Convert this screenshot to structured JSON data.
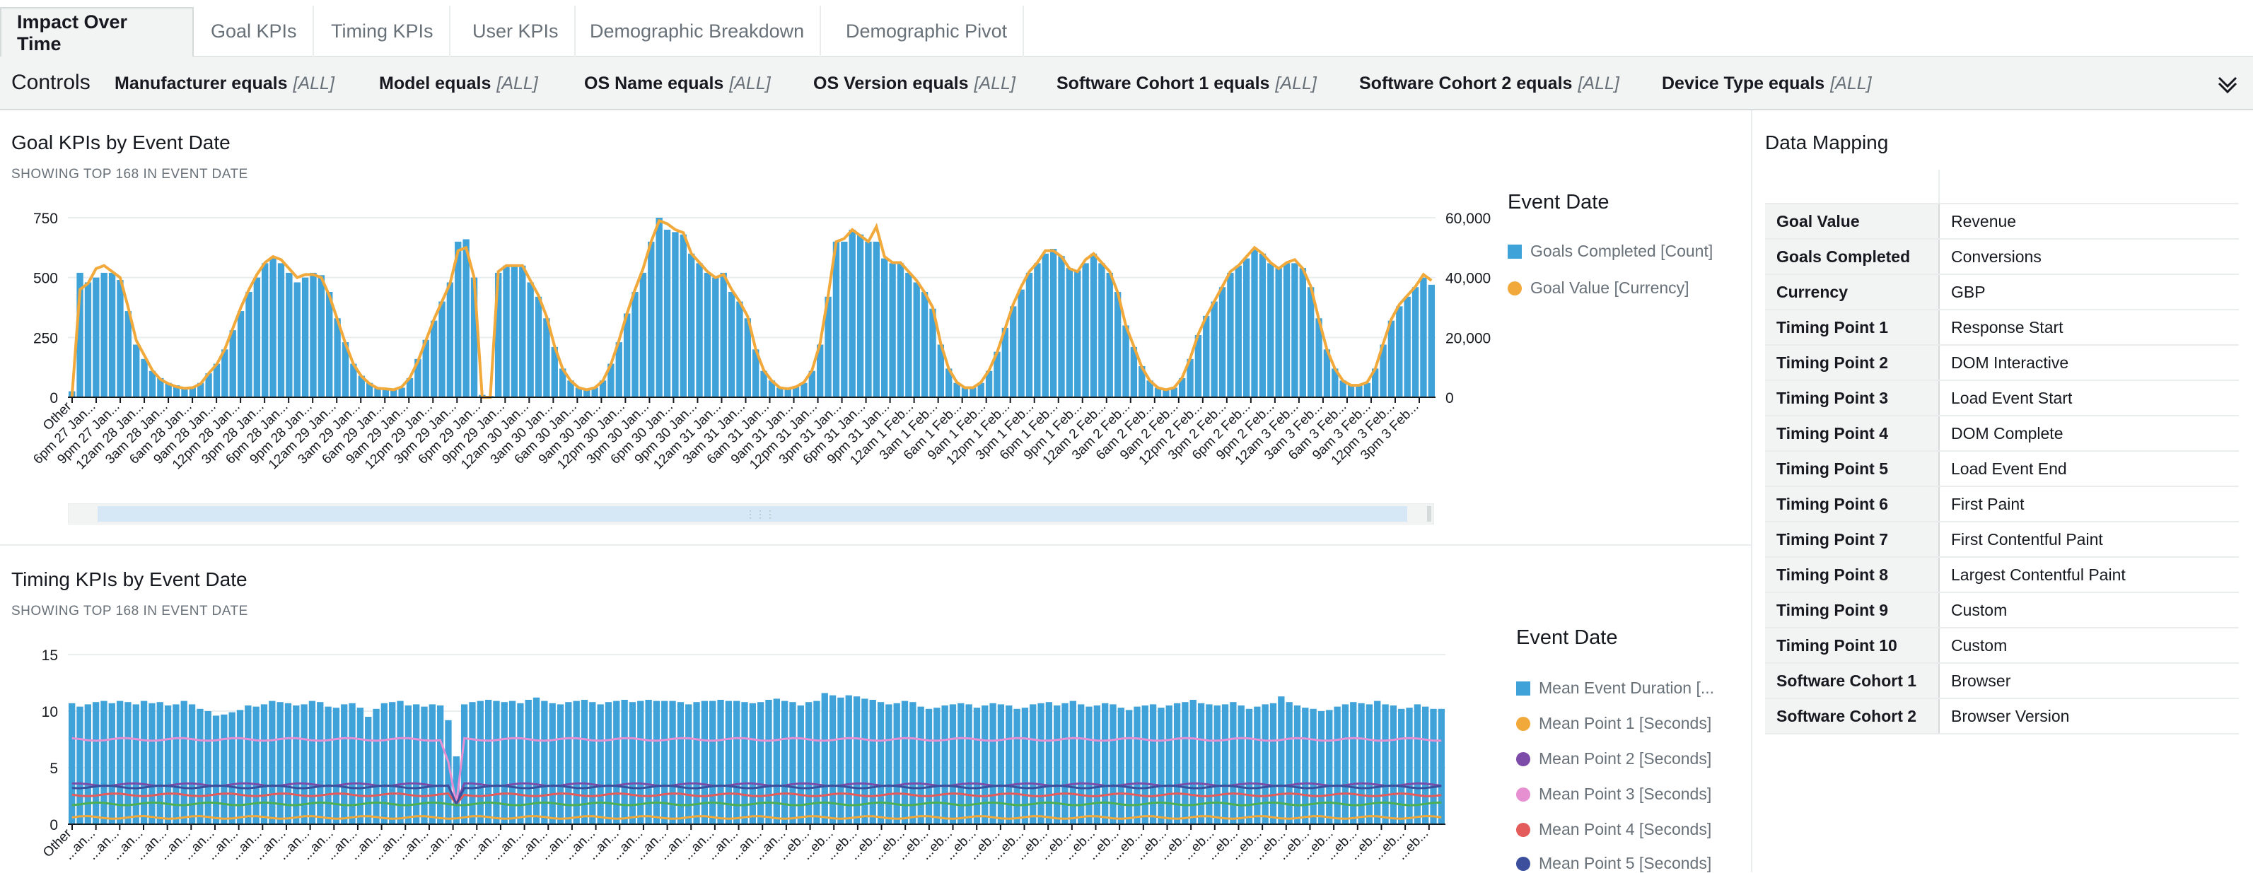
{
  "tabs": [
    {
      "label": "Impact Over Time"
    },
    {
      "label": "Goal KPIs"
    },
    {
      "label": "Timing KPIs"
    },
    {
      "label": "User KPIs"
    },
    {
      "label": "Demographic Breakdown"
    },
    {
      "label": "Demographic Pivot"
    }
  ],
  "controls": {
    "title": "Controls",
    "filters": [
      {
        "name": "Manufacturer equals",
        "value": "[ALL]"
      },
      {
        "name": "Model equals",
        "value": "[ALL]"
      },
      {
        "name": "OS Name equals",
        "value": "[ALL]"
      },
      {
        "name": "OS Version equals",
        "value": "[ALL]"
      },
      {
        "name": "Software Cohort 1 equals",
        "value": "[ALL]"
      },
      {
        "name": "Software Cohort 2 equals",
        "value": "[ALL]"
      },
      {
        "name": "Device Type equals",
        "value": "[ALL]"
      }
    ],
    "expand_icon": "chevron-down-icon"
  },
  "goal_panel": {
    "title": "Goal KPIs by Event Date",
    "subtitle": "SHOWING TOP 168 IN EVENT DATE",
    "legend_title": "Event Date",
    "legend": [
      {
        "label": "Goals Completed [Count]",
        "color": "#3fa3d9",
        "shape": "square"
      },
      {
        "label": "Goal Value [Currency]",
        "color": "#f2a93b",
        "shape": "dot"
      }
    ]
  },
  "timing_panel": {
    "title": "Timing KPIs by Event Date",
    "subtitle": "SHOWING TOP 168 IN EVENT DATE",
    "legend_title": "Event Date",
    "legend": [
      {
        "label": "Mean Event Duration [...",
        "color": "#3fa3d9",
        "shape": "square"
      },
      {
        "label": "Mean Point 1 [Seconds]",
        "color": "#f2a93b",
        "shape": "dot"
      },
      {
        "label": "Mean Point 2 [Seconds]",
        "color": "#7d4ca8",
        "shape": "dot"
      },
      {
        "label": "Mean Point 3 [Seconds]",
        "color": "#e68fd1",
        "shape": "dot"
      },
      {
        "label": "Mean Point 4 [Seconds]",
        "color": "#e35b5b",
        "shape": "dot"
      },
      {
        "label": "Mean Point 5 [Seconds]",
        "color": "#3b4f9c",
        "shape": "dot"
      }
    ]
  },
  "data_mapping": {
    "title": "Data Mapping",
    "rows": [
      {
        "key": "Goal Value",
        "value": "Revenue"
      },
      {
        "key": "Goals Completed",
        "value": "Conversions"
      },
      {
        "key": "Currency",
        "value": "GBP"
      },
      {
        "key": "Timing Point 1",
        "value": "Response Start"
      },
      {
        "key": "Timing Point 2",
        "value": "DOM Interactive"
      },
      {
        "key": "Timing Point 3",
        "value": "Load Event Start"
      },
      {
        "key": "Timing Point 4",
        "value": "DOM Complete"
      },
      {
        "key": "Timing Point 5",
        "value": "Load Event End"
      },
      {
        "key": "Timing Point 6",
        "value": "First Paint"
      },
      {
        "key": "Timing Point 7",
        "value": "First Contentful Paint"
      },
      {
        "key": "Timing Point 8",
        "value": "Largest Contentful Paint"
      },
      {
        "key": "Timing Point 9",
        "value": "Custom"
      },
      {
        "key": "Timing Point 10",
        "value": "Custom"
      },
      {
        "key": "Software Cohort 1",
        "value": "Browser"
      },
      {
        "key": "Software Cohort 2",
        "value": "Browser Version"
      }
    ]
  },
  "chart_data": [
    {
      "type": "bar",
      "title": "Goal KPIs by Event Date",
      "y_left_ticks": [
        "0",
        "250",
        "500",
        "750"
      ],
      "y_right_ticks": [
        "0",
        "20,000",
        "40,000",
        "60,000"
      ],
      "ylim": [
        0,
        750
      ],
      "y2lim": [
        0,
        60000
      ],
      "x_tick_labels": [
        "Other",
        "6pm 27 Jan...",
        "9pm 27 Jan...",
        "12am 28 Jan...",
        "3am 28 Jan...",
        "6am 28 Jan...",
        "9am 28 Jan...",
        "12pm 28 Jan...",
        "3pm 28 Jan...",
        "6pm 28 Jan...",
        "9pm 28 Jan...",
        "12am 29 Jan...",
        "3am 29 Jan...",
        "6am 29 Jan...",
        "9am 29 Jan...",
        "12pm 29 Jan...",
        "3pm 29 Jan...",
        "6pm 29 Jan...",
        "9pm 29 Jan...",
        "12am 30 Jan...",
        "3am 30 Jan...",
        "6am 30 Jan...",
        "9am 30 Jan...",
        "12pm 30 Jan...",
        "3pm 30 Jan...",
        "6pm 30 Jan...",
        "9pm 30 Jan...",
        "12am 31 Jan...",
        "3am 31 Jan...",
        "6am 31 Jan...",
        "9am 31 Jan...",
        "12pm 31 Jan...",
        "3pm 31 Jan...",
        "6pm 31 Jan...",
        "9pm 31 Jan...",
        "12am 1 Feb...",
        "3am 1 Feb...",
        "6am 1 Feb...",
        "9am 1 Feb...",
        "12pm 1 Feb...",
        "3pm 1 Feb...",
        "6pm 1 Feb...",
        "9pm 1 Feb...",
        "12am 2 Feb...",
        "3am 2 Feb...",
        "6am 2 Feb...",
        "9am 2 Feb...",
        "12pm 2 Feb...",
        "3pm 2 Feb...",
        "6pm 2 Feb...",
        "9pm 2 Feb...",
        "12am 3 Feb...",
        "3am 3 Feb...",
        "6am 3 Feb...",
        "9am 3 Feb...",
        "12pm 3 Feb...",
        "3pm 3 Feb..."
      ],
      "series": [
        {
          "name": "Goals Completed [Count]",
          "axis": "left",
          "color": "#3fa3d9",
          "values": [
            25,
            520,
            480,
            500,
            520,
            520,
            490,
            360,
            220,
            160,
            110,
            80,
            60,
            50,
            40,
            45,
            60,
            100,
            140,
            200,
            280,
            360,
            440,
            500,
            560,
            580,
            560,
            520,
            480,
            500,
            520,
            510,
            440,
            330,
            230,
            140,
            90,
            60,
            40,
            35,
            30,
            40,
            80,
            160,
            240,
            320,
            400,
            480,
            650,
            660,
            500,
            10,
            5,
            520,
            550,
            550,
            550,
            480,
            420,
            330,
            210,
            120,
            70,
            40,
            30,
            40,
            70,
            140,
            230,
            350,
            440,
            520,
            650,
            750,
            700,
            690,
            680,
            600,
            560,
            520,
            500,
            520,
            440,
            400,
            330,
            200,
            110,
            70,
            40,
            35,
            45,
            60,
            110,
            220,
            420,
            650,
            650,
            700,
            680,
            650,
            650,
            580,
            560,
            560,
            520,
            480,
            440,
            370,
            220,
            120,
            60,
            40,
            40,
            60,
            110,
            190,
            290,
            380,
            450,
            520,
            560,
            600,
            620,
            590,
            540,
            530,
            560,
            600,
            560,
            520,
            440,
            300,
            210,
            130,
            70,
            40,
            30,
            40,
            80,
            160,
            260,
            340,
            400,
            460,
            520,
            550,
            580,
            620,
            600,
            560,
            540,
            560,
            560,
            540,
            460,
            330,
            200,
            120,
            70,
            50,
            50,
            60,
            120,
            220,
            320,
            380,
            420,
            460,
            500,
            470
          ]
        },
        {
          "name": "Goal Value [Currency]",
          "axis": "right",
          "color": "#f2a93b",
          "values": [
            0,
            36000,
            38000,
            43000,
            44000,
            42000,
            40000,
            30000,
            19000,
            14000,
            9000,
            6000,
            4500,
            3500,
            3000,
            3200,
            4500,
            8000,
            11000,
            16000,
            23000,
            30000,
            36000,
            41000,
            45000,
            47000,
            46000,
            43000,
            40000,
            41000,
            41000,
            40000,
            34000,
            26000,
            18000,
            11000,
            7000,
            4500,
            3000,
            2800,
            2500,
            3500,
            6500,
            12000,
            19000,
            26000,
            32000,
            38000,
            49000,
            50000,
            40000,
            0,
            0,
            42000,
            44000,
            44000,
            44000,
            39000,
            34000,
            27000,
            17000,
            9500,
            5500,
            3200,
            2500,
            3200,
            5500,
            11000,
            19000,
            28000,
            36000,
            43000,
            52000,
            59000,
            58000,
            56000,
            55000,
            48000,
            45000,
            42000,
            40000,
            41000,
            36000,
            32000,
            27000,
            16000,
            9000,
            5500,
            3200,
            2800,
            3500,
            5000,
            9000,
            18000,
            34000,
            52000,
            53000,
            56000,
            54000,
            52000,
            57000,
            47000,
            45000,
            45000,
            42000,
            39000,
            35000,
            30000,
            18000,
            9500,
            5000,
            3200,
            3200,
            5000,
            9000,
            15000,
            23000,
            31000,
            37000,
            42000,
            45000,
            49000,
            49000,
            47000,
            43000,
            42000,
            46000,
            48000,
            45000,
            42000,
            35000,
            24000,
            17000,
            10000,
            5500,
            3200,
            2500,
            3200,
            6500,
            13000,
            21000,
            27000,
            32000,
            37000,
            42000,
            44000,
            47000,
            50000,
            48000,
            45000,
            43000,
            45000,
            46000,
            43000,
            37000,
            26000,
            16000,
            9500,
            5500,
            4000,
            4000,
            5000,
            9500,
            18000,
            26000,
            31000,
            34000,
            37000,
            41000,
            39000
          ]
        }
      ]
    },
    {
      "type": "bar",
      "title": "Timing KPIs by Event Date",
      "y_ticks": [
        "0",
        "5",
        "10",
        "15"
      ],
      "ylim": [
        0,
        15
      ],
      "series": [
        {
          "name": "Mean Event Duration [...",
          "color": "#3fa3d9",
          "values": [
            10.7,
            10.4,
            10.6,
            10.8,
            10.9,
            10.7,
            10.9,
            10.8,
            10.6,
            10.9,
            10.7,
            10.8,
            10.5,
            10.6,
            10.9,
            10.6,
            10.2,
            10.0,
            9.6,
            9.7,
            9.9,
            10.1,
            10.5,
            10.4,
            10.6,
            10.9,
            10.8,
            10.7,
            10.5,
            10.6,
            10.9,
            10.8,
            10.4,
            10.3,
            10.6,
            10.7,
            10.3,
            9.5,
            10.2,
            10.7,
            10.8,
            10.9,
            10.5,
            10.6,
            10.4,
            10.6,
            10.5,
            9.2,
            6.0,
            10.6,
            10.8,
            10.9,
            11.0,
            10.9,
            10.8,
            10.9,
            10.7,
            11.0,
            11.2,
            10.9,
            10.7,
            10.6,
            10.8,
            10.9,
            11.0,
            10.8,
            10.6,
            10.8,
            10.9,
            11.0,
            10.8,
            10.9,
            11.0,
            10.9,
            10.9,
            10.9,
            10.8,
            10.6,
            10.8,
            10.9,
            10.9,
            11.0,
            10.9,
            10.9,
            10.8,
            10.7,
            10.8,
            11.0,
            11.1,
            10.9,
            10.8,
            10.5,
            10.8,
            10.9,
            11.6,
            11.4,
            11.2,
            11.4,
            11.3,
            11.1,
            11.0,
            10.8,
            10.6,
            10.7,
            10.9,
            10.8,
            10.4,
            10.2,
            10.3,
            10.5,
            10.6,
            10.7,
            10.6,
            10.3,
            10.5,
            10.7,
            10.6,
            10.5,
            10.2,
            10.3,
            10.6,
            10.7,
            10.8,
            10.5,
            10.7,
            10.9,
            10.6,
            10.4,
            10.5,
            10.7,
            10.6,
            10.3,
            10.1,
            10.4,
            10.5,
            10.6,
            10.3,
            10.5,
            10.7,
            10.8,
            11.0,
            10.7,
            10.6,
            10.5,
            10.6,
            10.8,
            10.5,
            10.2,
            10.4,
            10.6,
            10.7,
            11.3,
            10.8,
            10.5,
            10.3,
            10.2,
            10.0,
            10.1,
            10.4,
            10.6,
            10.8,
            10.7,
            10.6,
            10.9,
            10.6,
            10.5,
            10.2,
            10.3,
            10.6,
            10.4,
            10.2,
            10.2
          ]
        },
        {
          "name": "Mean Point 1 [Seconds]",
          "color": "#f2a93b",
          "values_note": "approximately flat near 0.6"
        },
        {
          "name": "Mean Point 2 [Seconds]",
          "color": "#7d4ca8",
          "values_note": "approximately flat near 3.5"
        },
        {
          "name": "Mean Point 3 [Seconds]",
          "color": "#e68fd1",
          "values_note": "approximately flat near 7.5, dip near 2 at 9pm 29 Jan"
        },
        {
          "name": "Mean Point 4 [Seconds]",
          "color": "#e35b5b",
          "values_note": "approximately flat near 2.6"
        },
        {
          "name": "Mean Point 5 [Seconds]",
          "color": "#3b4f9c",
          "values_note": "approximately flat near 3.3"
        }
      ],
      "line_levels": {
        "Mean Point 1 [Seconds]": 0.6,
        "Mean Point 2 [Seconds]": 3.5,
        "Mean Point 3 [Seconds]": 7.5,
        "Mean Point 4 [Seconds]": 2.6,
        "Mean Point 5 [Seconds]": 3.3,
        "extra_green": 1.8
      },
      "x_tick_labels": [
        "Other",
        "...an...",
        "...an...",
        "...an...",
        "...an...",
        "...an...",
        "...an...",
        "...an...",
        "...an...",
        "...an...",
        "...an...",
        "...an...",
        "...an...",
        "...an...",
        "...an...",
        "...an...",
        "...an...",
        "...an...",
        "...an...",
        "...an...",
        "...an...",
        "...an...",
        "...an...",
        "...an...",
        "...an...",
        "...an...",
        "...an...",
        "...an...",
        "...an...",
        "...an...",
        "...an...",
        "...eb...",
        "...eb...",
        "...eb...",
        "...eb...",
        "...eb...",
        "...eb...",
        "...eb...",
        "...eb...",
        "...eb...",
        "...eb...",
        "...eb...",
        "...eb...",
        "...eb...",
        "...eb...",
        "...eb...",
        "...eb...",
        "...eb...",
        "...eb...",
        "...eb...",
        "...eb...",
        "...eb...",
        "...eb...",
        "...eb...",
        "...eb...",
        "...eb...",
        "...eb...",
        "...eb..."
      ]
    }
  ]
}
